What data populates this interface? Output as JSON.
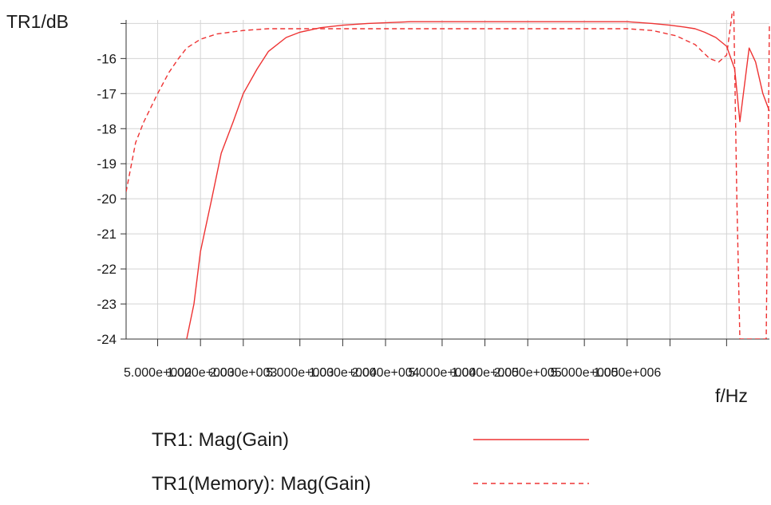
{
  "chart_data": {
    "type": "line",
    "ylabel": "TR1/dB",
    "xlabel": "f/Hz",
    "x_scale": "log",
    "xlim": [
      300.0,
      10000000.0
    ],
    "ylim": [
      -24,
      -14.9
    ],
    "y_ticks": [
      -24,
      -23,
      -22,
      -21,
      -20,
      -19,
      -18,
      -17,
      -16
    ],
    "x_tick_values": [
      500.0,
      1000.0,
      2000.0,
      5000.0,
      10000.0,
      20000.0,
      50000.0,
      100000.0,
      200000.0,
      500000.0,
      1000000.0,
      2000000.0,
      5000000.0
    ],
    "x_tick_labels": [
      {
        "x": 500.0,
        "text": "5.000e+002"
      },
      {
        "x": 1000.0,
        "text": "1.000e+003"
      },
      {
        "x": 2000.0,
        "text": "2.000e+003"
      },
      {
        "x": 5000.0,
        "text": "5.000e+003"
      },
      {
        "x": 10000.0,
        "text": "1.000e+004"
      },
      {
        "x": 20000.0,
        "text": "2.000e+004"
      },
      {
        "x": 50000.0,
        "text": "5.000e+004"
      },
      {
        "x": 100000.0,
        "text": "1.000e+005"
      },
      {
        "x": 200000.0,
        "text": "2.000e+005"
      },
      {
        "x": 500000.0,
        "text": "5.000e+005"
      },
      {
        "x": 1000000.0,
        "text": "1.000e+006"
      }
    ],
    "grid": true,
    "legend_position": "bottom",
    "series": [
      {
        "name": "TR1: Mag(Gain)",
        "color": "#ee3333",
        "style": "solid",
        "points": [
          [
            800.0,
            -24.0
          ],
          [
            900.0,
            -23.0
          ],
          [
            1000.0,
            -21.5
          ],
          [
            1200.0,
            -20.0
          ],
          [
            1400.0,
            -18.7
          ],
          [
            1700.0,
            -17.8
          ],
          [
            2000.0,
            -17.0
          ],
          [
            2500.0,
            -16.3
          ],
          [
            3000.0,
            -15.8
          ],
          [
            4000.0,
            -15.4
          ],
          [
            5000.0,
            -15.25
          ],
          [
            7000.0,
            -15.12
          ],
          [
            10000.0,
            -15.05
          ],
          [
            15000.0,
            -15.0
          ],
          [
            30000.0,
            -14.95
          ],
          [
            100000.0,
            -14.95
          ],
          [
            500000.0,
            -14.95
          ],
          [
            1000000.0,
            -14.95
          ],
          [
            1500000.0,
            -15.0
          ],
          [
            2000000.0,
            -15.05
          ],
          [
            2500000.0,
            -15.1
          ],
          [
            3000000.0,
            -15.15
          ],
          [
            3500000.0,
            -15.25
          ],
          [
            4200000.0,
            -15.4
          ],
          [
            5000000.0,
            -15.65
          ],
          [
            5700000.0,
            -16.3
          ],
          [
            6200000.0,
            -17.8
          ],
          [
            6800000.0,
            -16.5
          ],
          [
            7200000.0,
            -15.7
          ],
          [
            8000000.0,
            -16.1
          ],
          [
            9000000.0,
            -17.0
          ],
          [
            10000000.0,
            -17.5
          ]
        ]
      },
      {
        "name": "TR1(Memory): Mag(Gain)",
        "color": "#ee3333",
        "style": "dashed",
        "points": [
          [
            300.0,
            -19.8
          ],
          [
            350.0,
            -18.4
          ],
          [
            400.0,
            -17.8
          ],
          [
            500.0,
            -17.0
          ],
          [
            600.0,
            -16.4
          ],
          [
            700.0,
            -16.0
          ],
          [
            800.0,
            -15.7
          ],
          [
            1000.0,
            -15.45
          ],
          [
            1300.0,
            -15.3
          ],
          [
            2000.0,
            -15.2
          ],
          [
            3000.0,
            -15.15
          ],
          [
            5000.0,
            -15.15
          ],
          [
            100000.0,
            -15.15
          ],
          [
            1000000.0,
            -15.15
          ],
          [
            1500000.0,
            -15.2
          ],
          [
            2200000.0,
            -15.35
          ],
          [
            3000000.0,
            -15.6
          ],
          [
            3800000.0,
            -16.0
          ],
          [
            4400000.0,
            -16.1
          ],
          [
            5000000.0,
            -15.9
          ],
          [
            5400000.0,
            -14.9
          ],
          [
            5600000.0,
            -14.3
          ],
          [
            5900000.0,
            -20.0
          ],
          [
            6200000.0,
            -24.0
          ],
          [
            9500000.0,
            -24.0
          ],
          [
            10000000.0,
            -15.0
          ]
        ]
      }
    ]
  }
}
